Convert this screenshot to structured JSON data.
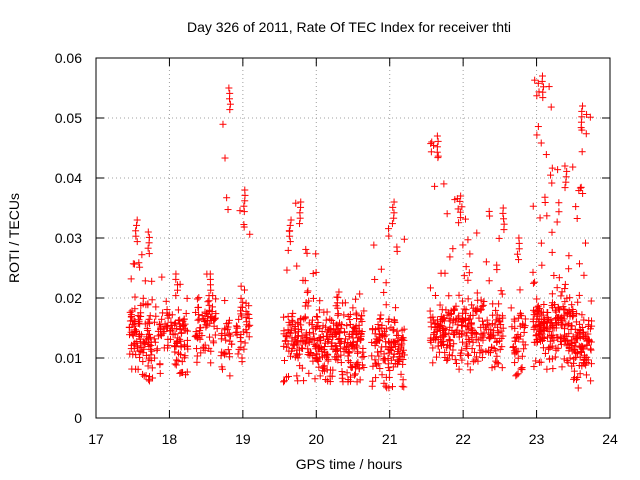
{
  "chart_data": {
    "type": "scatter",
    "title": "Day 326 of 2011, Rate Of TEC Index for receiver thti",
    "xlabel": "GPS time / hours",
    "ylabel": "ROTI / TECUs",
    "xlim": [
      17,
      24
    ],
    "ylim": [
      0,
      0.06
    ],
    "xticks": [
      "17",
      "18",
      "19",
      "20",
      "21",
      "22",
      "23",
      "24"
    ],
    "yticks": [
      "0",
      "0.01",
      "0.02",
      "0.03",
      "0.04",
      "0.05",
      "0.06"
    ],
    "grid": true,
    "marker": "+",
    "color": "#ff0000",
    "series": [
      {
        "name": "ROTI",
        "clusters": [
          {
            "x_start": 17.45,
            "x_end": 17.62,
            "n": 60,
            "y_min": 0.008,
            "y_max": 0.033,
            "peak_x": 17.55,
            "peak_y": 0.033
          },
          {
            "x_start": 17.62,
            "x_end": 17.78,
            "n": 50,
            "y_min": 0.006,
            "y_max": 0.031,
            "peak_x": 17.72,
            "peak_y": 0.031
          },
          {
            "x_start": 17.78,
            "x_end": 18.25,
            "n": 110,
            "y_min": 0.007,
            "y_max": 0.024,
            "peak_x": 18.1,
            "peak_y": 0.024
          },
          {
            "x_start": 18.35,
            "x_end": 18.65,
            "n": 70,
            "y_min": 0.009,
            "y_max": 0.024,
            "peak_x": 18.55,
            "peak_y": 0.024
          },
          {
            "x_start": 18.7,
            "x_end": 18.85,
            "n": 35,
            "y_min": 0.007,
            "y_max": 0.055,
            "peak_x": 18.82,
            "peak_y": 0.055
          },
          {
            "x_start": 18.9,
            "x_end": 19.1,
            "n": 45,
            "y_min": 0.009,
            "y_max": 0.038,
            "peak_x": 19.02,
            "peak_y": 0.038
          },
          {
            "x_start": 19.55,
            "x_end": 19.7,
            "n": 40,
            "y_min": 0.006,
            "y_max": 0.033,
            "peak_x": 19.65,
            "peak_y": 0.033
          },
          {
            "x_start": 19.7,
            "x_end": 20.0,
            "n": 90,
            "y_min": 0.006,
            "y_max": 0.036,
            "peak_x": 19.78,
            "peak_y": 0.036
          },
          {
            "x_start": 20.0,
            "x_end": 20.65,
            "n": 220,
            "y_min": 0.006,
            "y_max": 0.021,
            "peak_x": 20.3,
            "peak_y": 0.021
          },
          {
            "x_start": 20.75,
            "x_end": 21.2,
            "n": 140,
            "y_min": 0.005,
            "y_max": 0.036,
            "peak_x": 21.05,
            "peak_y": 0.036
          },
          {
            "x_start": 21.55,
            "x_end": 21.75,
            "n": 70,
            "y_min": 0.008,
            "y_max": 0.047,
            "peak_x": 21.65,
            "peak_y": 0.047
          },
          {
            "x_start": 21.75,
            "x_end": 22.0,
            "n": 75,
            "y_min": 0.008,
            "y_max": 0.037,
            "peak_x": 21.97,
            "peak_y": 0.037
          },
          {
            "x_start": 22.0,
            "x_end": 22.55,
            "n": 150,
            "y_min": 0.008,
            "y_max": 0.035,
            "peak_x": 22.55,
            "peak_y": 0.035
          },
          {
            "x_start": 22.65,
            "x_end": 22.85,
            "n": 45,
            "y_min": 0.007,
            "y_max": 0.03,
            "peak_x": 22.75,
            "peak_y": 0.03
          },
          {
            "x_start": 22.95,
            "x_end": 23.2,
            "n": 110,
            "y_min": 0.008,
            "y_max": 0.057,
            "peak_x": 23.08,
            "peak_y": 0.057
          },
          {
            "x_start": 23.2,
            "x_end": 23.5,
            "n": 120,
            "y_min": 0.008,
            "y_max": 0.042,
            "peak_x": 23.4,
            "peak_y": 0.042
          },
          {
            "x_start": 23.5,
            "x_end": 23.75,
            "n": 100,
            "y_min": 0.005,
            "y_max": 0.052,
            "peak_x": 23.62,
            "peak_y": 0.052
          }
        ]
      }
    ]
  }
}
